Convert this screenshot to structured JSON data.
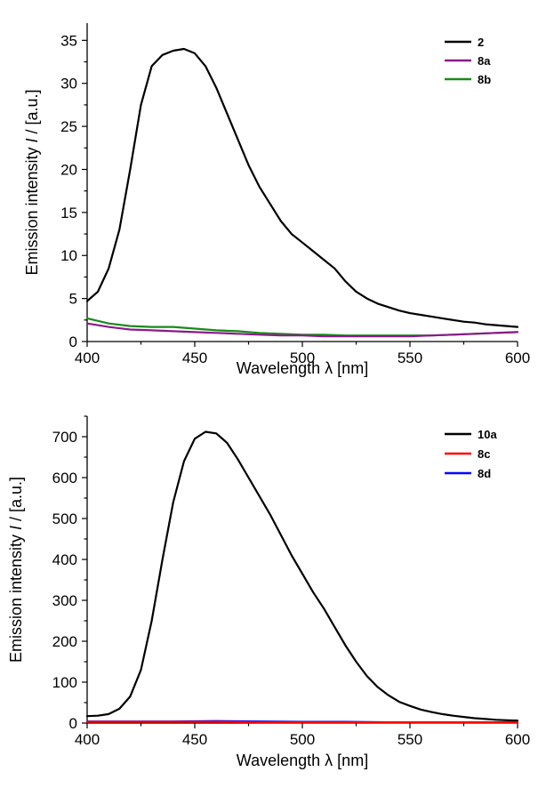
{
  "chart_data": [
    {
      "type": "line",
      "xlabel": "Wavelength λ [nm]",
      "ylabel_prefix": "Emission intensity ",
      "ylabel_italic": "I",
      "ylabel_suffix": " / [a.u.]",
      "xlim": [
        400,
        600
      ],
      "ylim": [
        0,
        37
      ],
      "x_ticks": [
        400,
        450,
        500,
        550,
        600
      ],
      "x_tick_labels": [
        "400",
        "450",
        "500",
        "550",
        "600"
      ],
      "y_ticks": [
        0,
        5,
        10,
        15,
        20,
        25,
        30,
        35
      ],
      "y_tick_labels": [
        "0",
        "5",
        "10",
        "15",
        "20",
        "25",
        "30",
        "35"
      ],
      "legend_position": "top-right",
      "grid": false,
      "series": [
        {
          "name": "2",
          "color": "#000000",
          "x": [
            400,
            405,
            410,
            415,
            420,
            425,
            430,
            435,
            440,
            445,
            450,
            455,
            460,
            465,
            470,
            475,
            480,
            485,
            490,
            495,
            500,
            505,
            510,
            515,
            520,
            525,
            530,
            535,
            540,
            545,
            550,
            555,
            560,
            565,
            570,
            575,
            580,
            585,
            590,
            595,
            600
          ],
          "values": [
            4.7,
            5.8,
            8.5,
            13.0,
            20.0,
            27.5,
            32.0,
            33.3,
            33.8,
            34.0,
            33.5,
            32.0,
            29.5,
            26.5,
            23.5,
            20.5,
            18.0,
            16.0,
            14.0,
            12.5,
            11.5,
            10.5,
            9.5,
            8.5,
            7.0,
            5.8,
            5.0,
            4.4,
            4.0,
            3.6,
            3.3,
            3.1,
            2.9,
            2.7,
            2.5,
            2.3,
            2.2,
            2.0,
            1.9,
            1.8,
            1.7
          ]
        },
        {
          "name": "8a",
          "color": "#8b1a8b",
          "x": [
            400,
            410,
            420,
            430,
            440,
            450,
            460,
            470,
            480,
            490,
            500,
            510,
            520,
            530,
            540,
            550,
            560,
            570,
            580,
            590,
            600
          ],
          "values": [
            2.1,
            1.7,
            1.4,
            1.3,
            1.2,
            1.1,
            1.0,
            0.9,
            0.8,
            0.7,
            0.7,
            0.6,
            0.6,
            0.6,
            0.6,
            0.6,
            0.7,
            0.8,
            0.9,
            1.0,
            1.1
          ]
        },
        {
          "name": "8b",
          "color": "#1a8a1a",
          "x": [
            400,
            410,
            420,
            430,
            440,
            450,
            460,
            470,
            480,
            490,
            500,
            510,
            520,
            530,
            540,
            550,
            560,
            570,
            580,
            590,
            600
          ],
          "values": [
            2.7,
            2.1,
            1.8,
            1.7,
            1.7,
            1.5,
            1.3,
            1.2,
            1.0,
            0.9,
            0.8,
            0.8,
            0.7,
            0.7,
            0.7,
            0.7,
            0.7,
            0.8,
            0.9,
            1.0,
            1.1
          ]
        }
      ]
    },
    {
      "type": "line",
      "xlabel": "Wavelength λ [nm]",
      "ylabel_prefix": "Emission intensity ",
      "ylabel_italic": "I",
      "ylabel_suffix": " / [a.u.]",
      "xlim": [
        400,
        600
      ],
      "ylim": [
        0,
        750
      ],
      "x_ticks": [
        400,
        450,
        500,
        550,
        600
      ],
      "x_tick_labels": [
        "400",
        "450",
        "500",
        "550",
        "600"
      ],
      "y_ticks": [
        0,
        100,
        200,
        300,
        400,
        500,
        600,
        700
      ],
      "y_tick_labels": [
        "0",
        "100",
        "200",
        "300",
        "400",
        "500",
        "600",
        "700"
      ],
      "legend_position": "top-right",
      "grid": false,
      "series": [
        {
          "name": "10a",
          "color": "#000000",
          "x": [
            400,
            405,
            410,
            415,
            420,
            425,
            430,
            435,
            440,
            445,
            450,
            455,
            460,
            465,
            470,
            475,
            480,
            485,
            490,
            495,
            500,
            505,
            510,
            515,
            520,
            525,
            530,
            535,
            540,
            545,
            550,
            555,
            560,
            565,
            570,
            575,
            580,
            585,
            590,
            595,
            600
          ],
          "values": [
            17,
            18,
            22,
            35,
            65,
            130,
            250,
            400,
            540,
            640,
            695,
            712,
            708,
            685,
            645,
            600,
            555,
            510,
            460,
            410,
            365,
            320,
            280,
            235,
            190,
            150,
            115,
            88,
            68,
            52,
            42,
            33,
            27,
            22,
            18,
            15,
            12,
            10,
            8,
            7,
            6
          ]
        },
        {
          "name": "8c",
          "color": "#ff0000",
          "x": [
            400,
            420,
            440,
            460,
            480,
            500,
            520,
            540,
            560,
            580,
            600
          ],
          "values": [
            3,
            3,
            3,
            3,
            2,
            2,
            2,
            2,
            2,
            2,
            2
          ]
        },
        {
          "name": "8d",
          "color": "#0000ff",
          "x": [
            400,
            420,
            440,
            460,
            480,
            500,
            520,
            540,
            560,
            580,
            600
          ],
          "values": [
            4,
            4,
            4,
            5,
            4,
            3,
            3,
            2,
            2,
            2,
            2
          ]
        }
      ]
    }
  ]
}
